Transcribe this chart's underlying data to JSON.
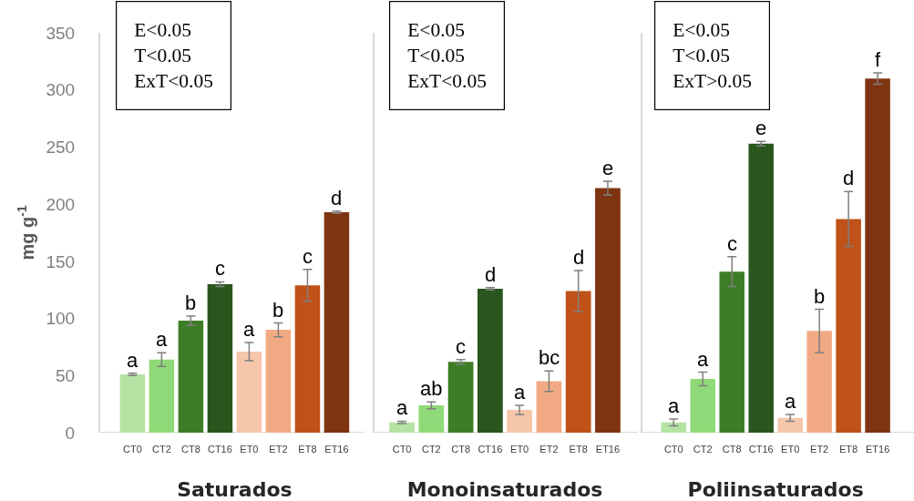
{
  "chart_data": [
    {
      "type": "bar",
      "xlabel": "Saturados",
      "ylabel": "mg g$^{-1}$",
      "categories": [
        "CT0",
        "CT2",
        "CT8",
        "CT16",
        "ET0",
        "ET2",
        "ET8",
        "ET16"
      ],
      "values": [
        51,
        64,
        98,
        130,
        71,
        90,
        129,
        193
      ],
      "errors": [
        1,
        6,
        4,
        2,
        8,
        6,
        14,
        1
      ],
      "value_labels": [
        "a",
        "a",
        "b",
        "c",
        "a",
        "b",
        "c",
        "d"
      ],
      "colors": [
        "#b5e3a3",
        "#90d978",
        "#3e7d27",
        "#28561c",
        "#f6c6aa",
        "#f1aa84",
        "#c05119",
        "#7f3411"
      ],
      "ylim": [
        0,
        350
      ],
      "yticks": [
        0,
        50,
        100,
        150,
        200,
        250,
        300,
        350
      ],
      "annotations": [
        "E<0.05",
        "T<0.05",
        "ExT<0.05"
      ]
    },
    {
      "type": "bar",
      "xlabel": "Monoinsaturados",
      "categories": [
        "CT0",
        "CT2",
        "CT8",
        "CT16",
        "ET0",
        "ET2",
        "ET8",
        "ET16"
      ],
      "values": [
        9,
        24,
        62,
        126,
        20,
        45,
        124,
        214
      ],
      "errors": [
        1,
        3,
        2,
        1,
        4,
        9,
        18,
        6
      ],
      "value_labels": [
        "a",
        "ab",
        "c",
        "d",
        "a",
        "bc",
        "d",
        "e"
      ],
      "colors": [
        "#b5e3a3",
        "#90d978",
        "#3e7d27",
        "#28561c",
        "#f6c6aa",
        "#f1aa84",
        "#c05119",
        "#7f3411"
      ],
      "ylim": [
        0,
        350
      ],
      "yticks": [
        0,
        50,
        100,
        150,
        200,
        250,
        300,
        350
      ],
      "tick_labels": "x",
      "annotations": [
        "E<0.05",
        "T<0.05",
        "ExT<0.05"
      ]
    },
    {
      "type": "bar",
      "xlabel": "Poliinsaturados",
      "categories": [
        "CT0",
        "CT2",
        "CT8",
        "CT16",
        "ET0",
        "ET2",
        "ET8",
        "ET16"
      ],
      "values": [
        9,
        47,
        141,
        253,
        13,
        89,
        187,
        310
      ],
      "errors": [
        3,
        6,
        13,
        2,
        3,
        19,
        24,
        5
      ],
      "value_labels": [
        "a",
        "a",
        "c",
        "e",
        "a",
        "b",
        "d",
        "f"
      ],
      "colors": [
        "#b5e3a3",
        "#90d978",
        "#3e7d27",
        "#28561c",
        "#f6c6aa",
        "#f1aa84",
        "#c05119",
        "#7f3411"
      ],
      "ylim": [
        0,
        350
      ],
      "yticks": [
        0,
        50,
        100,
        150,
        200,
        250,
        300,
        350
      ],
      "tick_labels": "x",
      "annotations": [
        "E<0.05",
        "T<0.05",
        "ExT>0.05"
      ]
    }
  ]
}
